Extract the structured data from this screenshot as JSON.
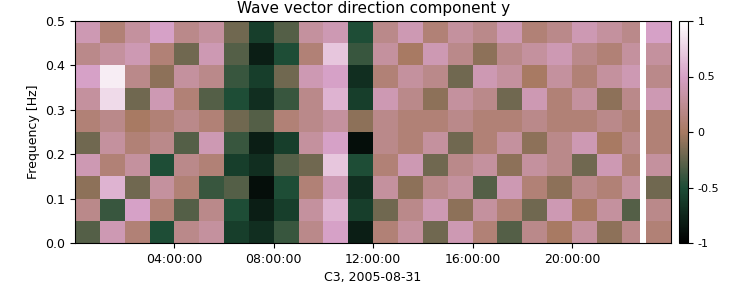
{
  "chart_data": {
    "type": "heatmap",
    "title": "Wave vector direction component y",
    "x_label": "C3, 2005-08-31",
    "y_label": "Frequency [Hz]",
    "xlim": [
      0,
      24
    ],
    "xticks": [
      {
        "value": 4,
        "label": "04:00:00"
      },
      {
        "value": 8,
        "label": "08:00:00"
      },
      {
        "value": 12,
        "label": "12:00:00"
      },
      {
        "value": 16,
        "label": "16:00:00"
      },
      {
        "value": 20,
        "label": "20:00:00"
      }
    ],
    "ylim": [
      0.0,
      0.5
    ],
    "yticks": [
      0.0,
      0.1,
      0.2,
      0.3,
      0.4,
      0.5
    ],
    "x_edges": [
      0,
      1,
      2,
      3,
      4,
      5,
      6,
      7,
      8,
      9,
      10,
      11,
      12,
      13,
      14,
      15,
      16,
      17,
      18,
      19,
      20,
      21,
      22,
      22.75,
      23.0,
      24
    ],
    "y_edges": [
      0.0,
      0.05,
      0.1,
      0.15,
      0.2,
      0.25,
      0.3,
      0.35,
      0.4,
      0.45,
      0.5
    ],
    "cells": [
      [
        -0.3,
        0.4,
        0.1,
        -0.5,
        0.2,
        0.3,
        -0.6,
        -0.7,
        -0.4,
        0.2,
        0.5,
        -0.8,
        0.1,
        0.3,
        -0.2,
        0.4,
        0.1,
        -0.3,
        0.2,
        0.0,
        0.3,
        -0.1,
        0.2,
        null,
        0.1
      ],
      [
        0.2,
        -0.4,
        0.5,
        0.1,
        -0.3,
        0.2,
        -0.5,
        -0.8,
        -0.6,
        0.3,
        0.6,
        -0.6,
        -0.2,
        0.2,
        0.4,
        -0.1,
        0.3,
        0.1,
        -0.2,
        0.4,
        0.0,
        0.3,
        -0.3,
        null,
        0.2
      ],
      [
        -0.1,
        0.6,
        -0.2,
        0.3,
        0.1,
        -0.4,
        -0.3,
        -0.9,
        -0.5,
        0.1,
        0.4,
        -0.7,
        0.3,
        -0.1,
        0.2,
        0.3,
        -0.3,
        0.4,
        0.1,
        -0.1,
        0.2,
        0.1,
        0.3,
        null,
        -0.2
      ],
      [
        0.4,
        0.1,
        0.3,
        -0.5,
        0.2,
        0.1,
        -0.6,
        -0.7,
        -0.3,
        -0.2,
        0.7,
        -0.5,
        0.1,
        0.4,
        -0.2,
        0.2,
        0.3,
        -0.1,
        0.3,
        0.2,
        -0.2,
        0.4,
        0.1,
        null,
        0.3
      ],
      [
        -0.2,
        0.3,
        0.1,
        0.2,
        -0.3,
        0.4,
        -0.4,
        -0.8,
        -0.6,
        0.3,
        0.5,
        -0.9,
        0.2,
        0.1,
        0.3,
        -0.2,
        0.1,
        0.3,
        -0.1,
        0.2,
        0.4,
        0.0,
        0.2,
        null,
        0.1
      ],
      [
        0.1,
        0.2,
        0.0,
        0.1,
        0.2,
        0.1,
        -0.2,
        -0.3,
        0.1,
        0.2,
        0.3,
        -0.1,
        0.2,
        0.1,
        0.1,
        0.2,
        0.1,
        0.1,
        0.2,
        0.1,
        0.1,
        0.2,
        0.1,
        null,
        0.1
      ],
      [
        0.3,
        0.8,
        -0.2,
        0.4,
        0.1,
        -0.3,
        -0.5,
        -0.7,
        -0.4,
        0.2,
        0.6,
        -0.6,
        0.4,
        0.2,
        -0.1,
        0.3,
        0.2,
        -0.2,
        0.4,
        0.1,
        0.3,
        -0.1,
        0.2,
        null,
        0.4
      ],
      [
        0.5,
        0.9,
        0.2,
        -0.1,
        0.3,
        0.2,
        -0.4,
        -0.6,
        -0.2,
        0.4,
        0.5,
        -0.7,
        0.1,
        0.3,
        0.2,
        -0.2,
        0.4,
        0.3,
        0.0,
        0.3,
        0.1,
        0.3,
        0.4,
        null,
        0.2
      ],
      [
        0.2,
        0.3,
        0.4,
        0.1,
        -0.2,
        0.4,
        -0.3,
        -0.8,
        -0.5,
        0.1,
        0.7,
        -0.4,
        0.3,
        0.0,
        0.4,
        0.2,
        -0.1,
        0.2,
        0.3,
        0.4,
        0.2,
        0.1,
        0.3,
        null,
        0.3
      ],
      [
        0.4,
        0.1,
        0.3,
        0.5,
        0.2,
        0.3,
        -0.2,
        -0.6,
        -0.3,
        0.3,
        0.4,
        -0.5,
        0.2,
        0.4,
        0.1,
        0.3,
        0.2,
        0.4,
        0.1,
        0.2,
        0.4,
        0.3,
        0.2,
        null,
        0.5
      ]
    ],
    "colorbar": {
      "range": [
        -1,
        1
      ],
      "ticks": [
        -1,
        -0.5,
        0,
        0.5,
        1
      ]
    }
  }
}
